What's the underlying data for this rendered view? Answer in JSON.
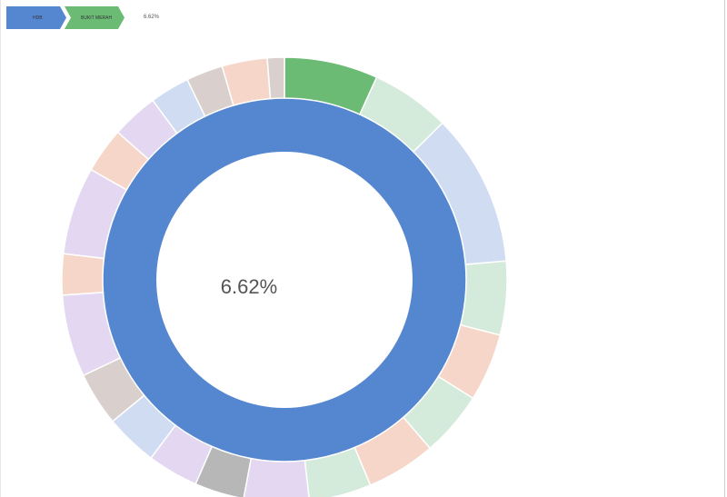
{
  "breadcrumb": {
    "items": [
      {
        "label": "HDB",
        "color": "#5587d1"
      },
      {
        "label": "BUKIT MERAH",
        "color": "#6bbb75"
      }
    ],
    "end_label": "6.62%"
  },
  "chart_data": {
    "type": "sunburst",
    "center_label": "6.62%",
    "inner_ring": [
      {
        "name": "HDB",
        "value": 100,
        "color": "#5587d1"
      }
    ],
    "outer_ring": [
      {
        "value": 6.62,
        "color": "#6bbb75"
      },
      {
        "value": 5.6,
        "color": "#d4eadb"
      },
      {
        "value": 10.8,
        "color": "#cfdcf2"
      },
      {
        "value": 5.2,
        "color": "#d4eadb"
      },
      {
        "value": 4.8,
        "color": "#f5d6c8"
      },
      {
        "value": 4.6,
        "color": "#d4eadb"
      },
      {
        "value": 4.9,
        "color": "#f5d6c8"
      },
      {
        "value": 4.4,
        "color": "#d4eadb"
      },
      {
        "value": 4.6,
        "color": "#e3d7f1"
      },
      {
        "value": 3.5,
        "color": "#b7b7b7"
      },
      {
        "value": 3.6,
        "color": "#e3d7f1"
      },
      {
        "value": 3.7,
        "color": "#cfdcf2"
      },
      {
        "value": 3.8,
        "color": "#d9d0ce"
      },
      {
        "value": 5.8,
        "color": "#e3d7f1"
      },
      {
        "value": 2.9,
        "color": "#f5d6c8"
      },
      {
        "value": 6.2,
        "color": "#e3d7f1"
      },
      {
        "value": 3.2,
        "color": "#f5d6c8"
      },
      {
        "value": 3.3,
        "color": "#e3d7f1"
      },
      {
        "value": 2.8,
        "color": "#cfdcf2"
      },
      {
        "value": 2.6,
        "color": "#d9d0ce"
      },
      {
        "value": 3.2,
        "color": "#f5d6c8"
      },
      {
        "value": 1.2,
        "color": "#d9d0ce"
      }
    ]
  }
}
